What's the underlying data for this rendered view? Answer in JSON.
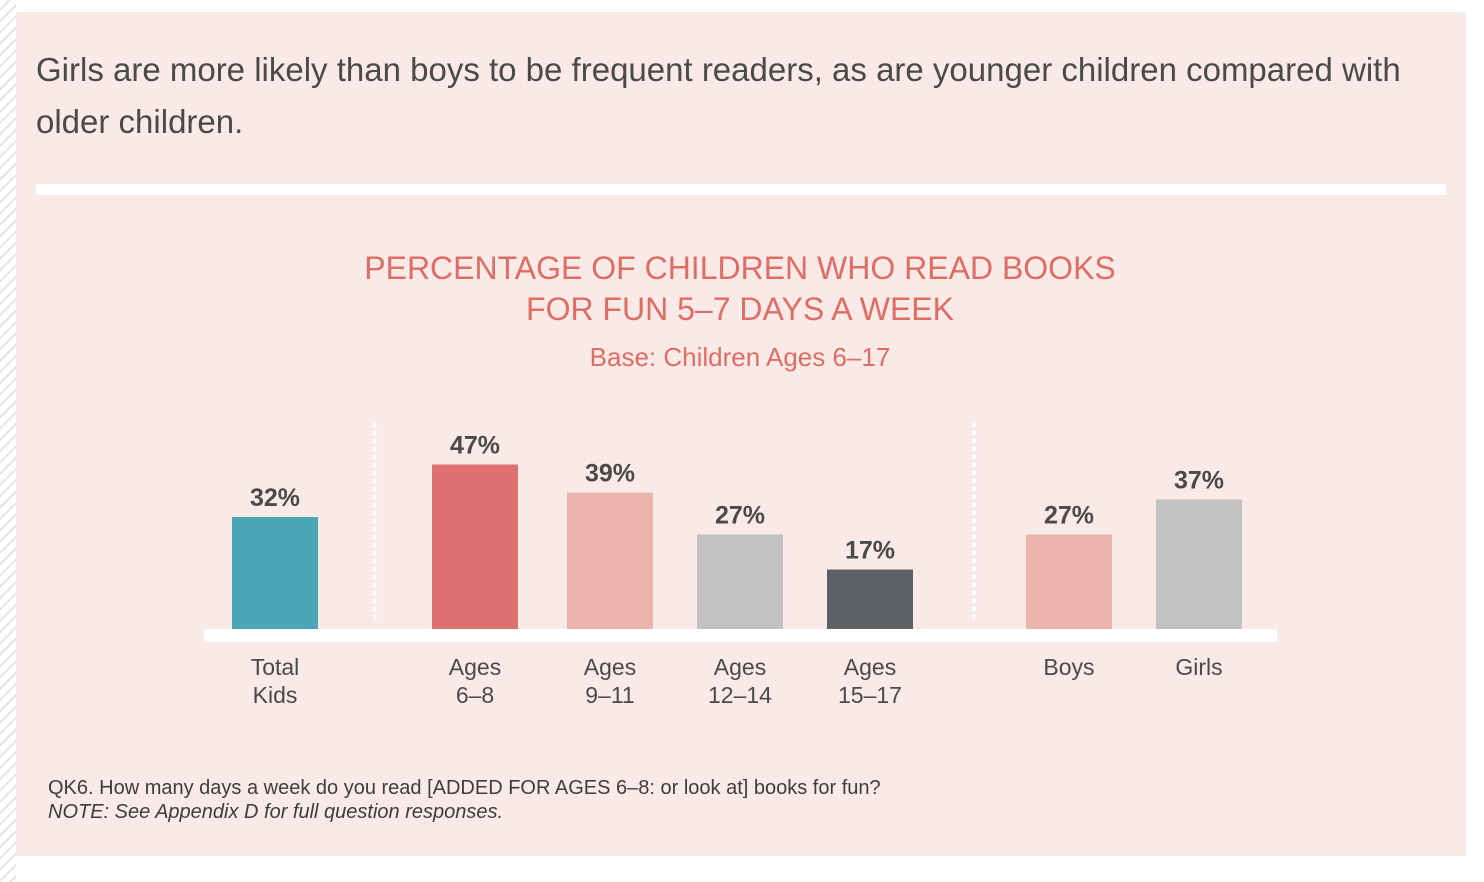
{
  "intro_text": "Girls are more likely than boys to be frequent readers, as are younger children compared with older children.",
  "footnote": {
    "question": "QK6. How many days a week do you read [ADDED FOR AGES 6–8: or look at] books for fun?",
    "note": "NOTE: See Appendix D for full question responses."
  },
  "chart_data": {
    "type": "bar",
    "title_line1": "PERCENTAGE OF CHILDREN WHO READ BOOKS",
    "title_line2": "FOR FUN 5–7 DAYS A WEEK",
    "subtitle": "Base: Children Ages 6–17",
    "unit": "%",
    "ylim": [
      0,
      100
    ],
    "grid": false,
    "bars": [
      {
        "label_lines": [
          "Total",
          "Kids"
        ],
        "value": 32,
        "value_label": "32%",
        "color": "#4ba7b8",
        "group": "total"
      },
      {
        "label_lines": [
          "Ages",
          "6–8"
        ],
        "value": 47,
        "value_label": "47%",
        "color": "#de7170",
        "group": "age"
      },
      {
        "label_lines": [
          "Ages",
          "9–11"
        ],
        "value": 39,
        "value_label": "39%",
        "color": "#ebb5ad",
        "group": "age"
      },
      {
        "label_lines": [
          "Ages",
          "12–14"
        ],
        "value": 27,
        "value_label": "27%",
        "color": "#c4c1c3",
        "group": "age"
      },
      {
        "label_lines": [
          "Ages",
          "15–17"
        ],
        "value": 17,
        "value_label": "17%",
        "color": "#5e6164",
        "group": "age"
      },
      {
        "label_lines": [
          "Boys"
        ],
        "value": 27,
        "value_label": "27%",
        "color": "#ebb5ad",
        "group": "gender"
      },
      {
        "label_lines": [
          "Girls"
        ],
        "value": 37,
        "value_label": "37%",
        "color": "#c4c1c3",
        "group": "gender"
      }
    ],
    "colors": {
      "baseline": "#ffffff",
      "separator": "#ffffff",
      "value_text": "#4a4a4a",
      "category_text": "#4a4a4a"
    }
  }
}
